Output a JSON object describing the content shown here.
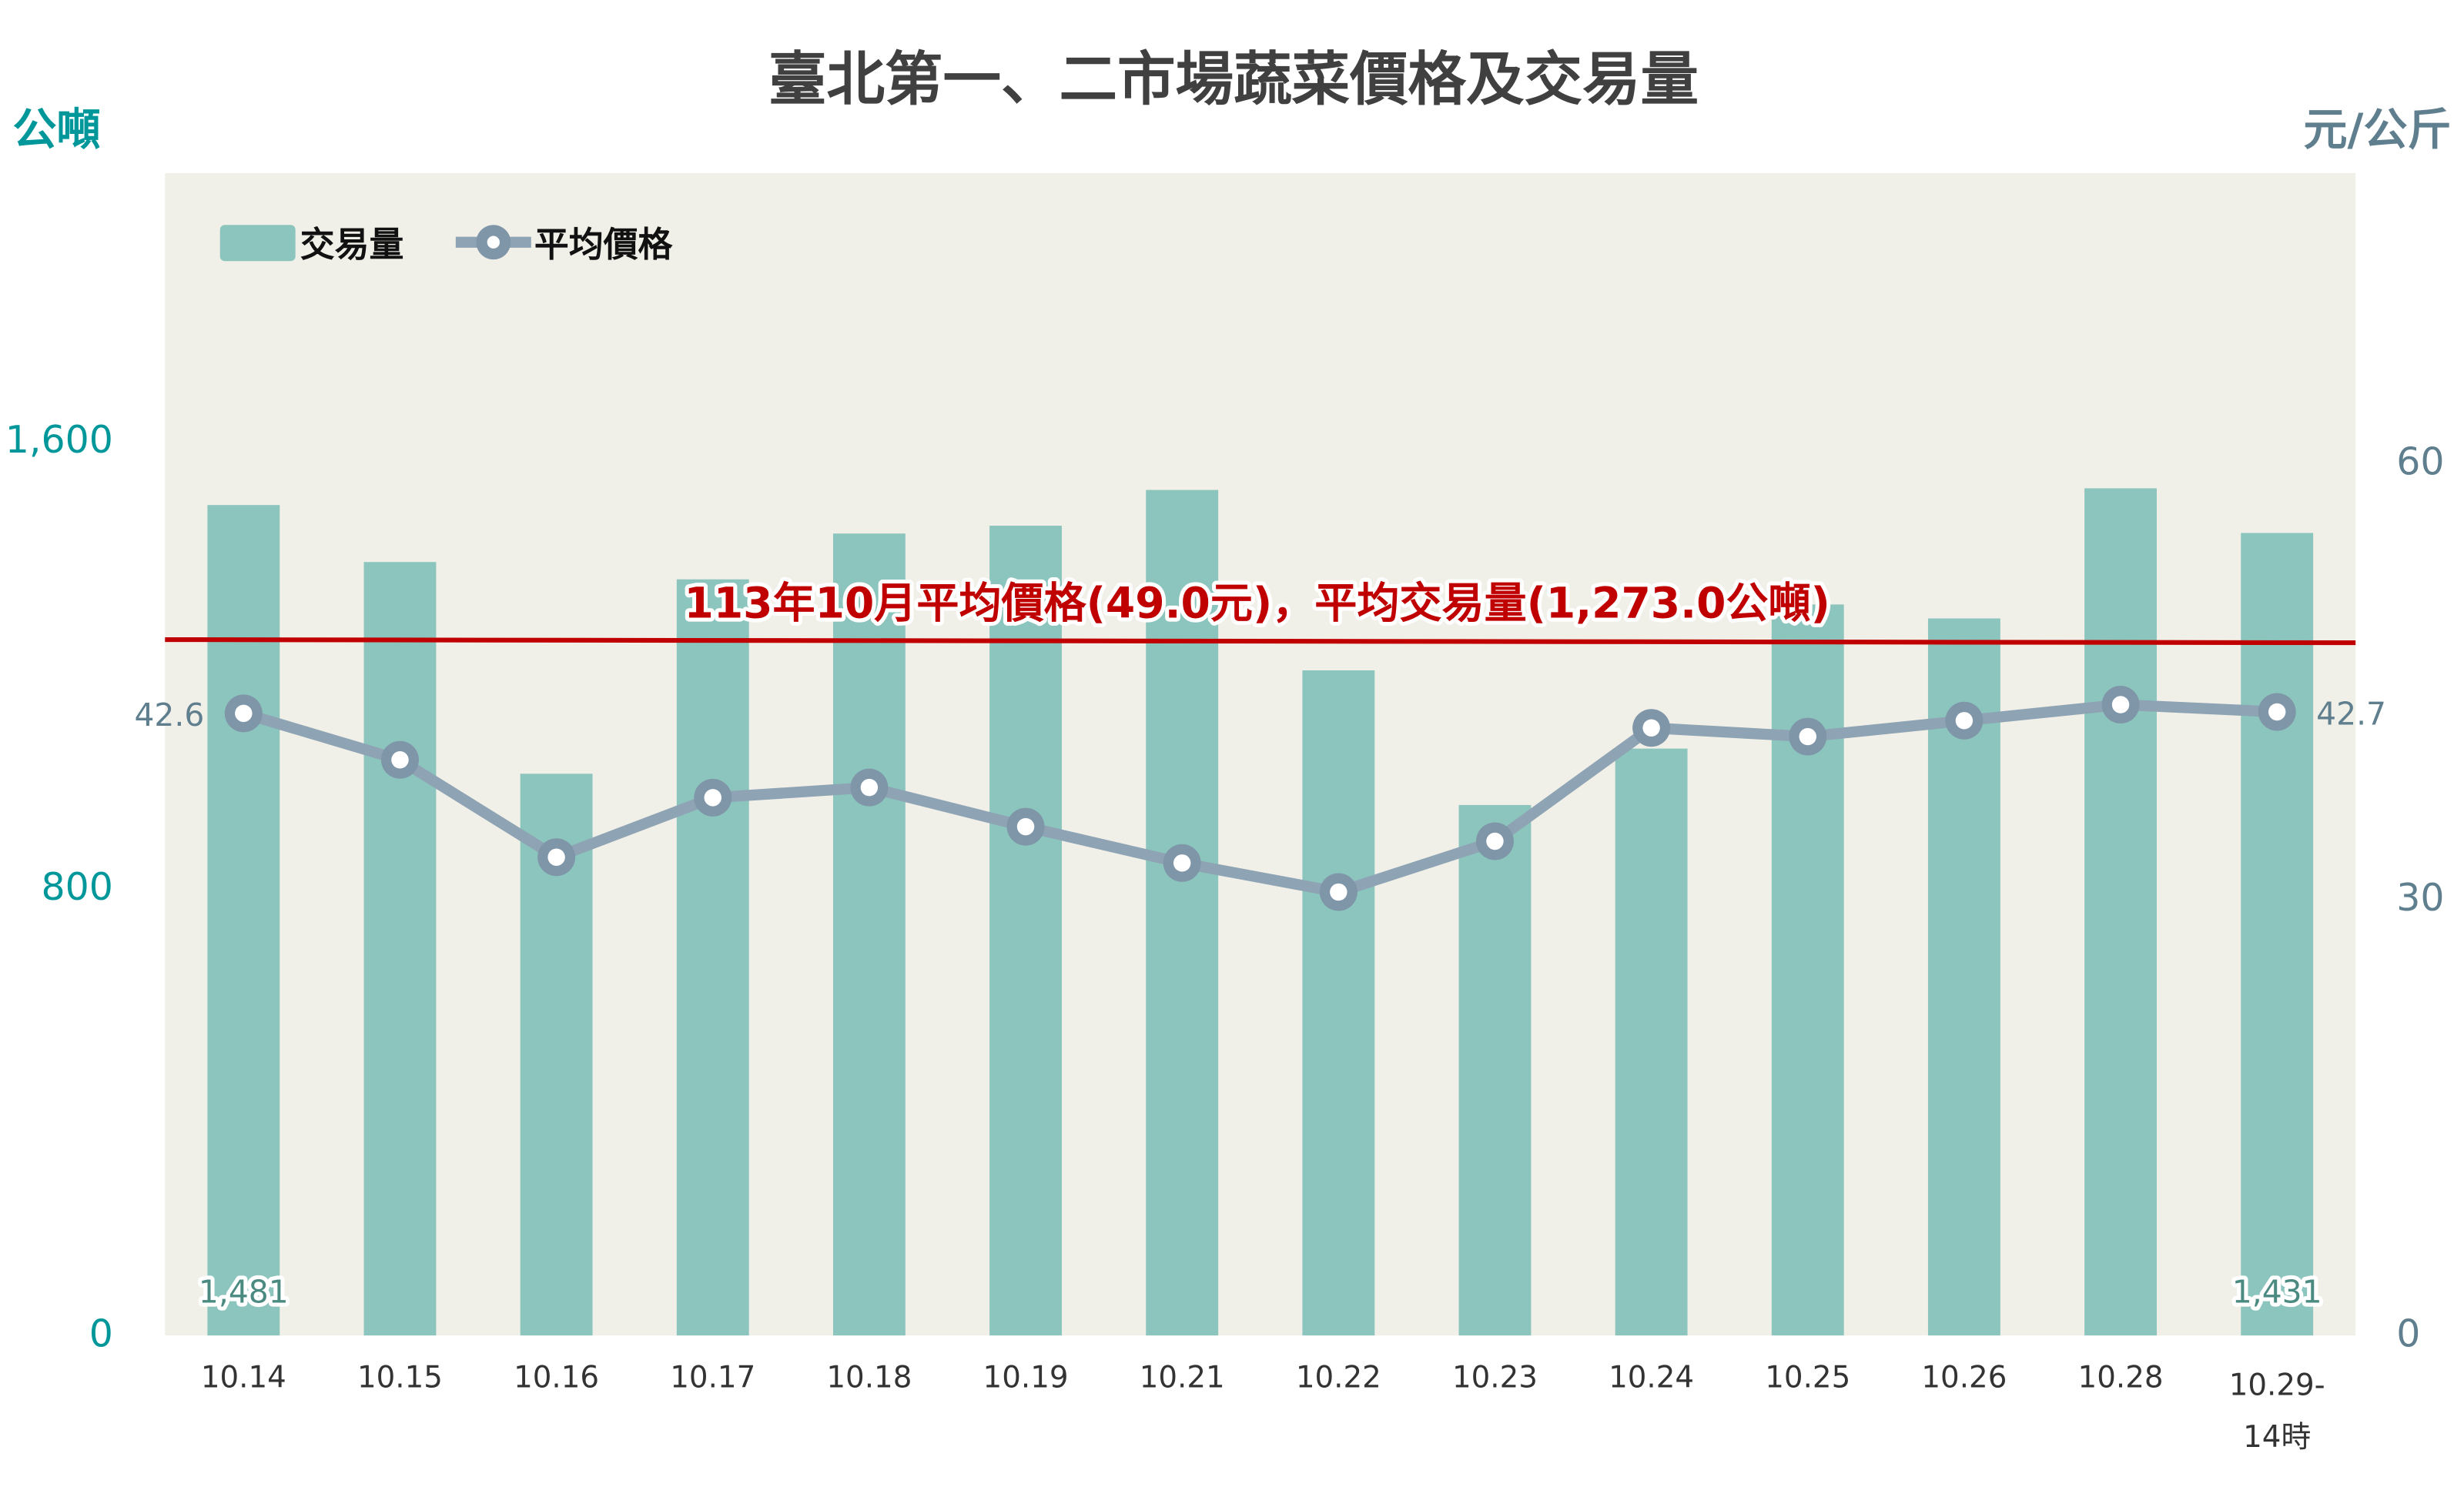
{
  "chart_data": {
    "type": "bar+line",
    "title": "臺北第一、二市場蔬菜價格及交易量",
    "left_axis": {
      "label": "公噸",
      "ticks": [
        "1,600",
        "800",
        "0"
      ],
      "tick_values": [
        1600,
        800,
        0
      ],
      "range": [
        0,
        2080
      ],
      "color": "#00979a"
    },
    "right_axis": {
      "label": "元/公斤",
      "ticks": [
        "60",
        "30",
        "0"
      ],
      "tick_values": [
        60,
        30,
        0
      ],
      "range": [
        0,
        80
      ],
      "color": "#5f7f8f"
    },
    "categories": [
      "10.14",
      "10.15",
      "10.16",
      "10.17",
      "10.18",
      "10.19",
      "10.21",
      "10.22",
      "10.23",
      "10.24",
      "10.25",
      "10.26",
      "10.28",
      "10.29-\n14時"
    ],
    "category_labels": [
      [
        "10.14"
      ],
      [
        "10.15"
      ],
      [
        "10.16"
      ],
      [
        "10.17"
      ],
      [
        "10.18"
      ],
      [
        "10.19"
      ],
      [
        "10.21"
      ],
      [
        "10.22"
      ],
      [
        "10.23"
      ],
      [
        "10.24"
      ],
      [
        "10.25"
      ],
      [
        "10.26"
      ],
      [
        "10.28"
      ],
      [
        "10.29-",
        "14時"
      ]
    ],
    "series": [
      {
        "name": "交易量",
        "type": "bar",
        "axis": "left",
        "color": "#8cc5be",
        "values": [
          1481,
          1379,
          1000,
          1348,
          1430,
          1444,
          1508,
          1185,
          944,
          1045,
          1303,
          1278,
          1511,
          1431
        ],
        "data_labels": {
          "0": "1,481",
          "13": "1,431"
        }
      },
      {
        "name": "平均價格",
        "type": "line",
        "axis": "right",
        "color": "#8ea3b3",
        "values": [
          42.6,
          39.4,
          32.7,
          36.8,
          37.5,
          34.8,
          32.3,
          30.3,
          33.8,
          41.6,
          41.0,
          42.1,
          43.2,
          42.7
        ],
        "data_labels": {
          "0": "42.6",
          "13": "42.7"
        }
      }
    ],
    "reference_line": {
      "label": "113年10月平均價格(49.0元)，平均交易量(1,273.0公噸)",
      "color": "#c00000"
    },
    "legend": {
      "position": "top-left",
      "items": [
        "交易量",
        "平均價格"
      ]
    },
    "plot_background": "#f1f0e8",
    "grid": false
  }
}
